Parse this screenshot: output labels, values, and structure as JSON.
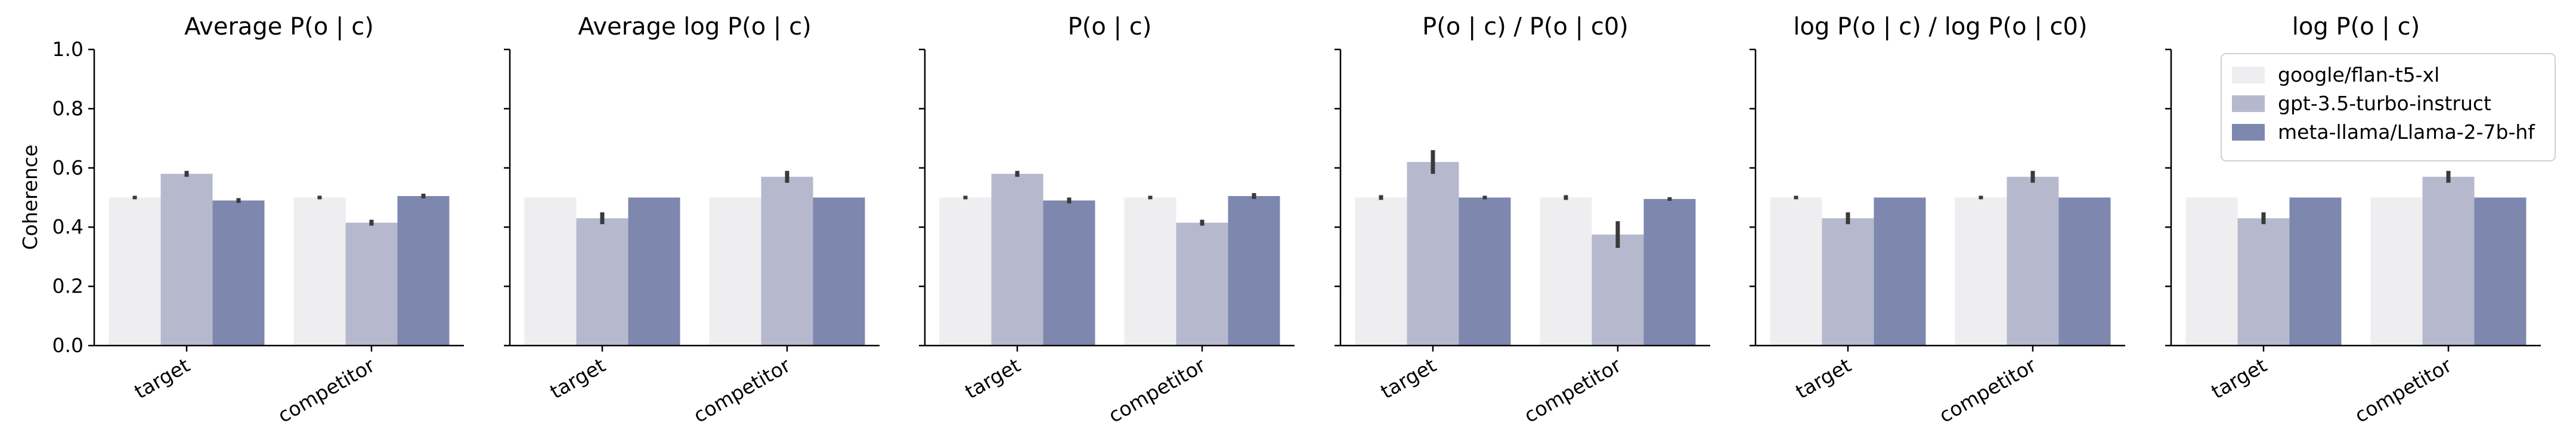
{
  "chart_data": {
    "type": "bar",
    "ylabel": "Coherence",
    "ylim": [
      0,
      1.0
    ],
    "yticks": [
      "0.0",
      "0.2",
      "0.4",
      "0.6",
      "0.8",
      "1.0"
    ],
    "categories": [
      "target",
      "competitor"
    ],
    "legend": {
      "placement": "top-right",
      "entries": [
        "google/flan-t5-xl",
        "gpt-3.5-turbo-instruct",
        "meta-llama/Llama-2-7b-hf"
      ]
    },
    "colors": [
      "#eeeef0",
      "#b6b9ce",
      "#7e87ae"
    ],
    "panels": [
      {
        "title": "Average P(o | c)",
        "series": [
          {
            "name": "google/flan-t5-xl",
            "values": [
              0.5,
              0.5
            ],
            "err": [
              0.006,
              0.006
            ]
          },
          {
            "name": "gpt-3.5-turbo-instruct",
            "values": [
              0.58,
              0.415
            ],
            "err": [
              0.01,
              0.01
            ]
          },
          {
            "name": "meta-llama/Llama-2-7b-hf",
            "values": [
              0.49,
              0.505
            ],
            "err": [
              0.008,
              0.008
            ]
          }
        ]
      },
      {
        "title": "Average log P(o | c)",
        "series": [
          {
            "name": "google/flan-t5-xl",
            "values": [
              0.5,
              0.5
            ],
            "err": [
              0,
              0
            ]
          },
          {
            "name": "gpt-3.5-turbo-instruct",
            "values": [
              0.43,
              0.57
            ],
            "err": [
              0.02,
              0.02
            ]
          },
          {
            "name": "meta-llama/Llama-2-7b-hf",
            "values": [
              0.5,
              0.5
            ],
            "err": [
              0,
              0
            ]
          }
        ]
      },
      {
        "title": "P(o | c)",
        "series": [
          {
            "name": "google/flan-t5-xl",
            "values": [
              0.5,
              0.5
            ],
            "err": [
              0.006,
              0.006
            ]
          },
          {
            "name": "gpt-3.5-turbo-instruct",
            "values": [
              0.58,
              0.415
            ],
            "err": [
              0.01,
              0.01
            ]
          },
          {
            "name": "meta-llama/Llama-2-7b-hf",
            "values": [
              0.49,
              0.505
            ],
            "err": [
              0.01,
              0.01
            ]
          }
        ]
      },
      {
        "title": "P(o | c) / P(o | c0)",
        "series": [
          {
            "name": "google/flan-t5-xl",
            "values": [
              0.5,
              0.5
            ],
            "err": [
              0.008,
              0.008
            ]
          },
          {
            "name": "gpt-3.5-turbo-instruct",
            "values": [
              0.62,
              0.375
            ],
            "err": [
              0.04,
              0.045
            ]
          },
          {
            "name": "meta-llama/Llama-2-7b-hf",
            "values": [
              0.5,
              0.495
            ],
            "err": [
              0.006,
              0.006
            ]
          }
        ]
      },
      {
        "title": "log P(o | c) / log P(o | c0)",
        "series": [
          {
            "name": "google/flan-t5-xl",
            "values": [
              0.5,
              0.5
            ],
            "err": [
              0.006,
              0.006
            ]
          },
          {
            "name": "gpt-3.5-turbo-instruct",
            "values": [
              0.43,
              0.57
            ],
            "err": [
              0.02,
              0.02
            ]
          },
          {
            "name": "meta-llama/Llama-2-7b-hf",
            "values": [
              0.5,
              0.5
            ],
            "err": [
              0,
              0
            ]
          }
        ]
      },
      {
        "title": "log P(o | c)",
        "series": [
          {
            "name": "google/flan-t5-xl",
            "values": [
              0.5,
              0.5
            ],
            "err": [
              0,
              0
            ]
          },
          {
            "name": "gpt-3.5-turbo-instruct",
            "values": [
              0.43,
              0.57
            ],
            "err": [
              0.02,
              0.02
            ]
          },
          {
            "name": "meta-llama/Llama-2-7b-hf",
            "values": [
              0.5,
              0.5
            ],
            "err": [
              0,
              0
            ]
          }
        ]
      }
    ]
  }
}
